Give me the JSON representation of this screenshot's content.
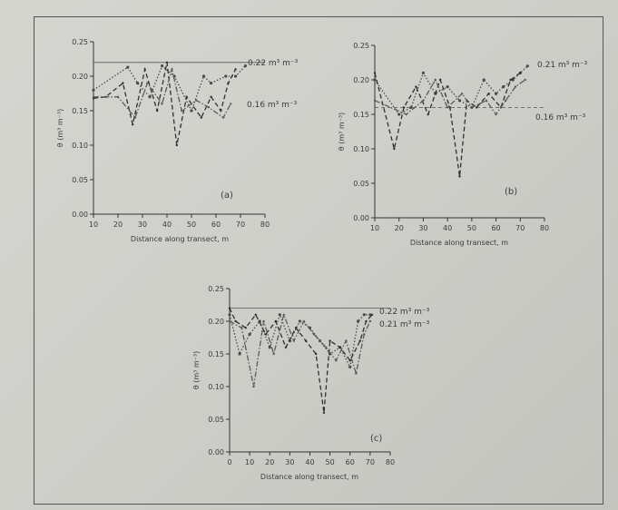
{
  "chart_data": [
    {
      "type": "line",
      "panel_label": "(a)",
      "xlabel": "Distance along transect, m",
      "ylabel": "θ (m³ m⁻³)",
      "xticks": [
        "10",
        "20",
        "30",
        "40",
        "50",
        "60",
        "70",
        "80"
      ],
      "yticks": [
        "0.00",
        "0.05",
        "0.10",
        "0.15",
        "0.20",
        "0.25"
      ],
      "xlim": [
        10,
        80
      ],
      "ylim": [
        0,
        0.25
      ],
      "reference_lines": [
        {
          "label": "0.22 m³ m⁻³",
          "value": 0.22,
          "style": "solid"
        },
        {
          "label": "0.16 m³ m⁻³",
          "value": 0.16,
          "style": "none"
        }
      ],
      "series": [
        {
          "style": "dotted",
          "x": [
            10,
            24,
            28,
            33,
            38,
            43,
            50,
            55,
            58,
            64,
            68,
            72
          ],
          "y": [
            0.18,
            0.213,
            0.19,
            0.17,
            0.215,
            0.2,
            0.15,
            0.2,
            0.19,
            0.2,
            0.2,
            0.215
          ]
        },
        {
          "style": "dashed",
          "x": [
            10,
            15,
            22,
            26,
            31,
            36,
            40,
            44,
            48,
            54,
            58,
            62,
            65,
            68
          ],
          "y": [
            0.168,
            0.17,
            0.19,
            0.13,
            0.21,
            0.15,
            0.22,
            0.1,
            0.17,
            0.14,
            0.17,
            0.15,
            0.19,
            0.21
          ]
        },
        {
          "style": "dashdot",
          "x": [
            10,
            20,
            27,
            32,
            38,
            42,
            46,
            52,
            57,
            63,
            66
          ],
          "y": [
            0.17,
            0.17,
            0.14,
            0.19,
            0.16,
            0.21,
            0.15,
            0.165,
            0.155,
            0.14,
            0.16
          ]
        }
      ]
    },
    {
      "type": "line",
      "panel_label": "(b)",
      "xlabel": "Distance along transect, m",
      "ylabel": "θ (m³ m⁻³)",
      "xticks": [
        "10",
        "20",
        "30",
        "40",
        "50",
        "60",
        "70",
        "80"
      ],
      "yticks": [
        "0.00",
        "0.05",
        "0.10",
        "0.15",
        "0.20",
        "0.25"
      ],
      "xlim": [
        10,
        80
      ],
      "ylim": [
        0,
        0.25
      ],
      "reference_lines": [
        {
          "label": "0.21 m³ m⁻³",
          "value": 0.21,
          "style": "none"
        },
        {
          "label": "0.16 m³ m⁻³",
          "value": 0.16,
          "style": "dashed"
        }
      ],
      "series": [
        {
          "style": "dotted",
          "x": [
            10,
            20,
            25,
            30,
            35,
            40,
            45,
            50,
            55,
            60,
            63,
            67,
            70,
            73
          ],
          "y": [
            0.2,
            0.15,
            0.16,
            0.21,
            0.18,
            0.19,
            0.17,
            0.16,
            0.2,
            0.18,
            0.19,
            0.2,
            0.21,
            0.22
          ]
        },
        {
          "style": "dashed",
          "x": [
            10,
            18,
            22,
            27,
            32,
            37,
            41,
            45,
            48,
            52,
            57,
            62,
            66,
            70
          ],
          "y": [
            0.21,
            0.1,
            0.16,
            0.19,
            0.15,
            0.2,
            0.16,
            0.06,
            0.17,
            0.16,
            0.18,
            0.16,
            0.2,
            0.21
          ]
        },
        {
          "style": "dashdot",
          "x": [
            10,
            23,
            30,
            35,
            40,
            46,
            50,
            56,
            60,
            64,
            68,
            72
          ],
          "y": [
            0.17,
            0.15,
            0.17,
            0.2,
            0.16,
            0.18,
            0.16,
            0.17,
            0.15,
            0.17,
            0.19,
            0.2
          ]
        }
      ]
    },
    {
      "type": "line",
      "panel_label": "(c)",
      "xlabel": "Distance along transect, m",
      "ylabel": "θ (m³ m⁻³)",
      "xticks": [
        "0",
        "10",
        "20",
        "30",
        "40",
        "50",
        "60",
        "70",
        "80"
      ],
      "yticks": [
        "0.00",
        "0.05",
        "0.10",
        "0.15",
        "0.20",
        "0.25"
      ],
      "xlim": [
        0,
        80
      ],
      "ylim": [
        0,
        0.25
      ],
      "reference_lines": [
        {
          "label": "0.22 m³ m⁻³",
          "value": 0.22,
          "style": "solid"
        },
        {
          "label": "0.21 m³ m⁻³",
          "value": 0.21,
          "style": "none"
        }
      ],
      "series": [
        {
          "style": "dotted",
          "x": [
            0,
            5,
            10,
            15,
            20,
            25,
            30,
            35,
            40,
            45,
            50,
            55,
            60,
            64,
            67,
            70
          ],
          "y": [
            0.21,
            0.15,
            0.18,
            0.2,
            0.16,
            0.21,
            0.17,
            0.2,
            0.19,
            0.17,
            0.15,
            0.16,
            0.13,
            0.2,
            0.21,
            0.21
          ]
        },
        {
          "style": "dashed",
          "x": [
            0,
            3,
            8,
            13,
            18,
            23,
            28,
            33,
            38,
            43,
            47,
            50,
            55,
            60,
            65,
            68,
            71
          ],
          "y": [
            0.22,
            0.2,
            0.19,
            0.21,
            0.18,
            0.2,
            0.16,
            0.19,
            0.17,
            0.15,
            0.06,
            0.17,
            0.16,
            0.14,
            0.17,
            0.2,
            0.21
          ]
        },
        {
          "style": "dashdot",
          "x": [
            0,
            6,
            12,
            17,
            22,
            27,
            32,
            37,
            42,
            48,
            53,
            58,
            63,
            67,
            70
          ],
          "y": [
            0.2,
            0.19,
            0.1,
            0.2,
            0.15,
            0.21,
            0.17,
            0.2,
            0.18,
            0.16,
            0.14,
            0.17,
            0.12,
            0.18,
            0.2
          ]
        }
      ]
    }
  ]
}
